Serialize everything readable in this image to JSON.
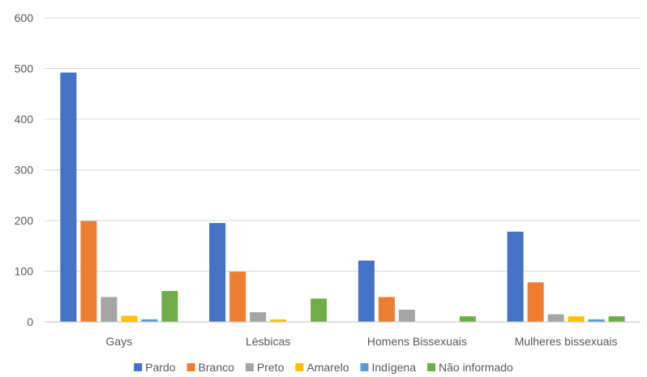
{
  "chart_data": {
    "type": "bar",
    "categories": [
      "Gays",
      "Lésbicas",
      "Homens Bissexuais",
      "Mulheres bissexuais"
    ],
    "series": [
      {
        "name": "Pardo",
        "color": "#4472c4",
        "values": [
          492,
          195,
          121,
          178
        ]
      },
      {
        "name": "Branco",
        "color": "#ed7d31",
        "values": [
          199,
          99,
          49,
          78
        ]
      },
      {
        "name": "Preto",
        "color": "#a5a5a5",
        "values": [
          49,
          19,
          24,
          15
        ]
      },
      {
        "name": "Amarelo",
        "color": "#ffc000",
        "values": [
          12,
          5,
          0,
          11
        ]
      },
      {
        "name": "Indígena",
        "color": "#5b9bd5",
        "values": [
          5,
          0,
          0,
          5
        ]
      },
      {
        "name": "Não informado",
        "color": "#70ad47",
        "values": [
          61,
          46,
          11,
          11
        ]
      }
    ],
    "yticks": [
      "0",
      "100",
      "200",
      "300",
      "400",
      "500",
      "600"
    ],
    "ylim": [
      0,
      600
    ],
    "grid": true,
    "legend_position": "bottom"
  }
}
